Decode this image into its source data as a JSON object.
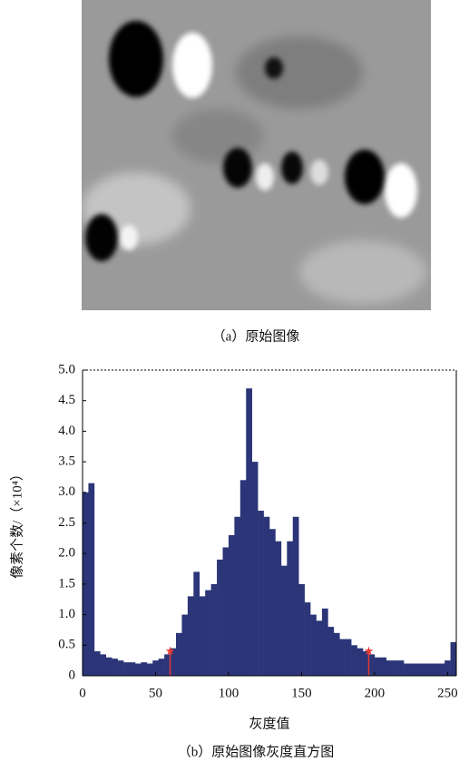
{
  "figure": {
    "caption_a": "（a）原始图像",
    "caption_b": "（b）原始图像灰度直方图"
  },
  "chart_data": {
    "type": "histogram",
    "xlabel": "灰度值",
    "ylabel": "像素个数/（×10⁴）",
    "bins": [
      0,
      4,
      8,
      12,
      16,
      20,
      24,
      28,
      32,
      36,
      40,
      44,
      48,
      52,
      56,
      60,
      64,
      68,
      72,
      76,
      80,
      84,
      88,
      92,
      96,
      100,
      104,
      108,
      112,
      116,
      120,
      124,
      128,
      132,
      136,
      140,
      144,
      148,
      152,
      156,
      160,
      164,
      168,
      172,
      176,
      180,
      184,
      188,
      192,
      196,
      200,
      204,
      208,
      212,
      216,
      220,
      224,
      228,
      232,
      236,
      240,
      244,
      248,
      252,
      256
    ],
    "values": [
      3.0,
      3.15,
      0.4,
      0.35,
      0.3,
      0.28,
      0.25,
      0.22,
      0.22,
      0.2,
      0.22,
      0.2,
      0.25,
      0.28,
      0.35,
      0.45,
      0.7,
      1.0,
      1.3,
      1.7,
      1.3,
      1.4,
      1.5,
      1.9,
      2.1,
      2.3,
      2.6,
      3.2,
      4.7,
      3.5,
      2.7,
      2.6,
      2.4,
      2.2,
      1.8,
      2.2,
      2.6,
      1.5,
      1.2,
      1.0,
      0.9,
      1.1,
      0.8,
      0.7,
      0.6,
      0.6,
      0.5,
      0.45,
      0.4,
      0.35,
      0.3,
      0.3,
      0.25,
      0.25,
      0.25,
      0.2,
      0.2,
      0.2,
      0.2,
      0.2,
      0.2,
      0.2,
      0.25,
      0.55
    ],
    "color": "#2b3578",
    "markers": [
      {
        "x": 60,
        "y": 0.4
      },
      {
        "x": 196,
        "y": 0.4
      }
    ],
    "marker_color": "#e53935",
    "xlim": [
      0,
      256
    ],
    "xticks": [
      0,
      50,
      100,
      150,
      200,
      250
    ],
    "ylim": [
      0,
      5
    ],
    "yticks": [
      0,
      0.5,
      {
        "value": 1,
        "label": "1.0"
      },
      1.5,
      {
        "value": 2,
        "label": "2.0"
      },
      2.5,
      {
        "value": 3,
        "label": "3.0"
      },
      3.5,
      {
        "value": 4,
        "label": "4.0"
      },
      4.5,
      {
        "value": 5,
        "label": "5.0"
      }
    ]
  }
}
